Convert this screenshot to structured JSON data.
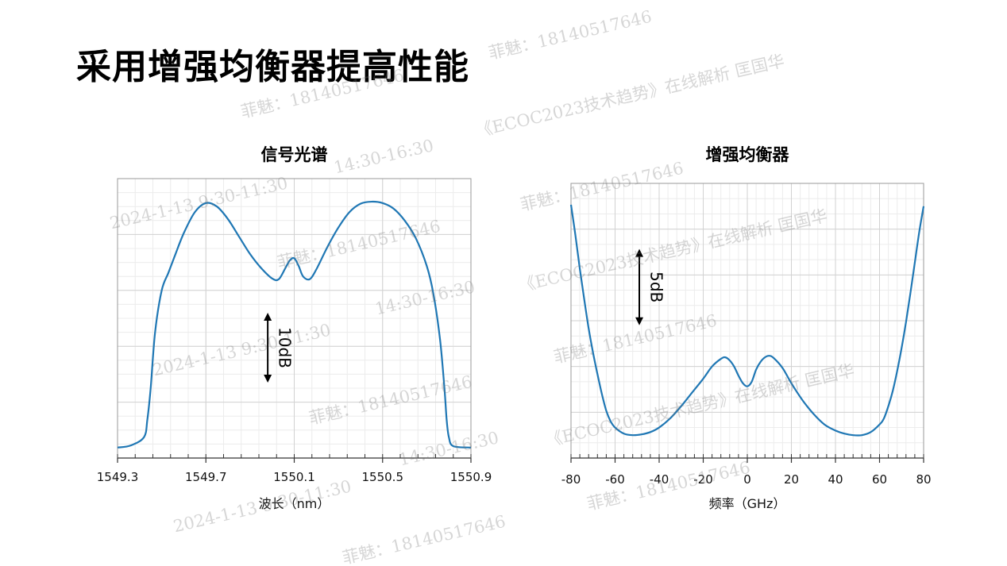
{
  "page": {
    "title": "采用增强均衡器提高性能"
  },
  "chart_data": [
    {
      "type": "line",
      "title": "信号光谱",
      "xlabel": "波长（nm）",
      "ylabel": "",
      "xlim": [
        1549.3,
        1550.9
      ],
      "ylim": [
        -38,
        2
      ],
      "xticks": [
        "1549.3",
        "1549.7",
        "1550.1",
        "1550.5",
        "1550.9"
      ],
      "grid": true,
      "annotation": {
        "label": "10dB",
        "span_db": 10,
        "x": 1549.98,
        "y_top": -17.2
      },
      "series": [
        {
          "name": "",
          "color": "#1f77b4",
          "x": [
            1549.3,
            1549.36,
            1549.42,
            1549.435,
            1549.45,
            1549.47,
            1549.5,
            1549.53,
            1549.56,
            1549.6,
            1549.65,
            1549.7,
            1549.75,
            1549.8,
            1549.85,
            1549.9,
            1549.95,
            1550.0,
            1550.03,
            1550.06,
            1550.08,
            1550.1,
            1550.12,
            1550.14,
            1550.17,
            1550.2,
            1550.25,
            1550.3,
            1550.35,
            1550.4,
            1550.45,
            1550.5,
            1550.55,
            1550.6,
            1550.65,
            1550.7,
            1550.73,
            1550.76,
            1550.78,
            1550.79,
            1550.8,
            1550.82,
            1550.9
          ],
          "y": [
            -36.5,
            -36.2,
            -35.0,
            -32.5,
            -28.0,
            -20.0,
            -14.0,
            -11.5,
            -9.0,
            -5.8,
            -2.8,
            -1.5,
            -2.0,
            -3.8,
            -6.3,
            -8.8,
            -10.8,
            -12.3,
            -12.4,
            -10.8,
            -9.7,
            -9.4,
            -10.5,
            -12.0,
            -12.4,
            -11.0,
            -7.8,
            -5.0,
            -2.8,
            -1.6,
            -1.3,
            -1.5,
            -2.3,
            -4.0,
            -6.5,
            -10.5,
            -14.5,
            -21.0,
            -28.0,
            -32.5,
            -35.0,
            -36.3,
            -36.5
          ]
        }
      ]
    },
    {
      "type": "line",
      "title": "增强均衡器",
      "xlabel": "频率（GHz）",
      "ylabel": "",
      "xlim": [
        -80,
        80
      ],
      "ylim": [
        -17,
        1
      ],
      "xticks": [
        "-80",
        "-60",
        "-40",
        "-20",
        "0",
        "20",
        "40",
        "60",
        "80"
      ],
      "grid": true,
      "annotation": {
        "label": "5dB",
        "span_db": 5,
        "x": -49,
        "y_top": -3.3
      },
      "series": [
        {
          "name": "",
          "color": "#1f77b4",
          "x": [
            -80,
            -78,
            -76,
            -74,
            -72,
            -70,
            -68,
            -66,
            -64,
            -62,
            -60,
            -56,
            -52,
            -48,
            -44,
            -40,
            -35,
            -30,
            -25,
            -20,
            -16,
            -12,
            -10,
            -8,
            -6,
            -4,
            -2,
            0,
            2,
            4,
            6,
            8,
            10,
            12,
            16,
            20,
            25,
            30,
            35,
            40,
            44,
            48,
            52,
            56,
            60,
            62,
            64,
            66,
            68,
            70,
            72,
            74,
            76,
            78,
            80
          ],
          "y": [
            -0.4,
            -2.4,
            -4.6,
            -6.6,
            -8.5,
            -10.1,
            -11.5,
            -12.8,
            -13.9,
            -14.6,
            -15.0,
            -15.4,
            -15.5,
            -15.45,
            -15.3,
            -15.0,
            -14.4,
            -13.6,
            -12.7,
            -11.8,
            -11.0,
            -10.5,
            -10.4,
            -10.6,
            -11.0,
            -11.6,
            -12.1,
            -12.3,
            -12.0,
            -11.2,
            -10.7,
            -10.4,
            -10.3,
            -10.45,
            -11.1,
            -12.1,
            -13.2,
            -14.1,
            -14.8,
            -15.2,
            -15.4,
            -15.5,
            -15.5,
            -15.3,
            -14.8,
            -14.4,
            -13.6,
            -12.6,
            -11.3,
            -9.8,
            -8.1,
            -6.2,
            -4.2,
            -2.2,
            -0.5
          ]
        }
      ]
    }
  ],
  "watermarks": [
    "菲魅：18140517646",
    "菲魅：18140517646",
    "《ECOC2023技术趋势》在线解析 匡国华",
    "14:30-16:30",
    "2024-1-13 9:30-11:30",
    "菲魅：18140517646",
    "菲魅：18140517646",
    "《ECOC2023技术趋势》在线解析 匡国华",
    "14:30-16:30",
    "2024-1-13 9:30-11:30",
    "菲魅：18140517646",
    "菲魅：18140517646",
    "《ECOC2023技术趋势》在线解析 匡国华",
    "14:30-16:30",
    "2024-1-13 9:30-11:30",
    "菲魅：18140517646",
    "菲魅：18140517646"
  ]
}
